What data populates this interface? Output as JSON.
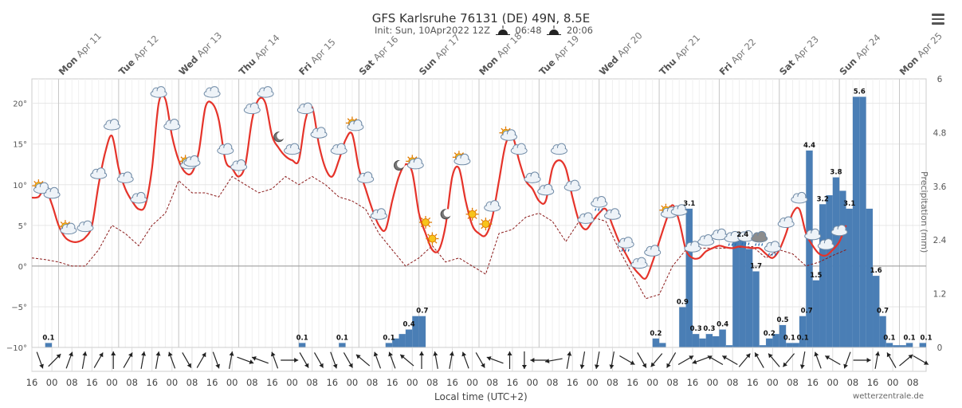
{
  "header": {
    "title": "GFS Karlsruhe 76131 (DE) 49N, 8.5E",
    "init": "Init: Sun, 10Apr2022 12Z",
    "sunrise": "06:48",
    "sunset": "20:06"
  },
  "credit": "wetterzentrale.de",
  "colors": {
    "temp": "#e5332a",
    "temp_cold": "#4aa3df",
    "dewpoint": "#8b1a1a",
    "precip": "#4a7eb5",
    "grid": "#e6e6e6"
  },
  "chart_data": {
    "type": "line+bar",
    "title": "GFS Karlsruhe 76131 (DE) 49N, 8.5E",
    "xlabel": "Local time (UTC+2)",
    "y_left": {
      "ticks": [
        "20°",
        "15°",
        "10°",
        "5°",
        "0°",
        "−5°",
        "−10°"
      ],
      "range": [
        -10,
        23
      ]
    },
    "y_right": {
      "label": "Precipitation (mm)",
      "ticks": [
        "6",
        "4.8",
        "3.6",
        "2.4",
        "1.2",
        "0"
      ],
      "range": [
        0,
        6
      ]
    },
    "days": [
      "Mon Apr 11",
      "Tue Apr 12",
      "Wed Apr 13",
      "Thu Apr 14",
      "Fri Apr 15",
      "Sat Apr 16",
      "Sun Apr 17",
      "Mon Apr 18",
      "Tue Apr 19",
      "Wed Apr 20",
      "Thu Apr 21",
      "Fri Apr 22",
      "Sat Apr 23",
      "Sun Apr 24",
      "Mon Apr 25"
    ],
    "hour_ticks": [
      "16",
      "00",
      "08",
      "16",
      "00",
      "08",
      "16",
      "00",
      "08",
      "16",
      "00",
      "08",
      "16",
      "00",
      "08",
      "16",
      "00",
      "08",
      "16",
      "00",
      "08",
      "16",
      "00",
      "08",
      "16",
      "00",
      "08",
      "16",
      "00",
      "08",
      "16",
      "00",
      "08",
      "16",
      "00",
      "08",
      "16",
      "00",
      "08",
      "16",
      "00",
      "08",
      "16",
      "00",
      "08"
    ],
    "grid": true,
    "temperature": [
      [
        0,
        8.4
      ],
      [
        1,
        8.5
      ],
      [
        2,
        9.5
      ],
      [
        3,
        7.6
      ],
      [
        4,
        5
      ],
      [
        5,
        3.5
      ],
      [
        6,
        3
      ],
      [
        7,
        3
      ],
      [
        8,
        3.5
      ],
      [
        9,
        5
      ],
      [
        10,
        10
      ],
      [
        11,
        14
      ],
      [
        12,
        16
      ],
      [
        13,
        12
      ],
      [
        14,
        9.5
      ],
      [
        15,
        8
      ],
      [
        16,
        7
      ],
      [
        17,
        7.5
      ],
      [
        18,
        12
      ],
      [
        19,
        20
      ],
      [
        20,
        20.5
      ],
      [
        21,
        16
      ],
      [
        22,
        13
      ],
      [
        23,
        11.5
      ],
      [
        24,
        11.5
      ],
      [
        25,
        14
      ],
      [
        26,
        19.5
      ],
      [
        27,
        20
      ],
      [
        28,
        18
      ],
      [
        29,
        13
      ],
      [
        30,
        12
      ],
      [
        31,
        11
      ],
      [
        32,
        12.5
      ],
      [
        33,
        18
      ],
      [
        34,
        20.5
      ],
      [
        35,
        20
      ],
      [
        36,
        16
      ],
      [
        37,
        14.5
      ],
      [
        38,
        13.5
      ],
      [
        39,
        13
      ],
      [
        40,
        13
      ],
      [
        41,
        18
      ],
      [
        42,
        19.5
      ],
      [
        43,
        15
      ],
      [
        44,
        12
      ],
      [
        45,
        11
      ],
      [
        46,
        13
      ],
      [
        47,
        15.5
      ],
      [
        48,
        16.2
      ],
      [
        49,
        12
      ],
      [
        50,
        9.5
      ],
      [
        51,
        7
      ],
      [
        52,
        5
      ],
      [
        53,
        4.5
      ],
      [
        54,
        8
      ],
      [
        55,
        11
      ],
      [
        56,
        12.5
      ],
      [
        57,
        11.5
      ],
      [
        58,
        6.5
      ],
      [
        59,
        4
      ],
      [
        60,
        2
      ],
      [
        61,
        2
      ],
      [
        62,
        5
      ],
      [
        63,
        11
      ],
      [
        64,
        12
      ],
      [
        65,
        8
      ],
      [
        66,
        5
      ],
      [
        67,
        4
      ],
      [
        68,
        3.8
      ],
      [
        69,
        6
      ],
      [
        70,
        10.5
      ],
      [
        71,
        15
      ],
      [
        72,
        16
      ],
      [
        73,
        13
      ],
      [
        74,
        10.5
      ],
      [
        75,
        9.5
      ],
      [
        76,
        8
      ],
      [
        77,
        8
      ],
      [
        78,
        12
      ],
      [
        79,
        13
      ],
      [
        80,
        12
      ],
      [
        81,
        8.5
      ],
      [
        82,
        5.5
      ],
      [
        83,
        4.5
      ],
      [
        84,
        5.5
      ],
      [
        85,
        6.5
      ],
      [
        86,
        7
      ],
      [
        87,
        5
      ],
      [
        88,
        3
      ],
      [
        89,
        1.5
      ],
      [
        90,
        0
      ],
      [
        91,
        -1
      ],
      [
        92,
        -1.5
      ],
      [
        93,
        0.5
      ],
      [
        94,
        3
      ],
      [
        95,
        5.5
      ],
      [
        96,
        7.5
      ],
      [
        97,
        5.5
      ],
      [
        98,
        2
      ],
      [
        99,
        1
      ],
      [
        100,
        1
      ],
      [
        101,
        1.8
      ],
      [
        102,
        2.2
      ],
      [
        103,
        2.5
      ],
      [
        104,
        2.3
      ],
      [
        105,
        2.2
      ],
      [
        106,
        2.4
      ],
      [
        107,
        2.3
      ],
      [
        108,
        2.2
      ],
      [
        109,
        2.2
      ],
      [
        110,
        1.5
      ],
      [
        111,
        1
      ],
      [
        112,
        2
      ],
      [
        113,
        4
      ],
      [
        114,
        6.5
      ],
      [
        115,
        7
      ],
      [
        116,
        4
      ],
      [
        117,
        2.5
      ],
      [
        118,
        1.5
      ],
      [
        119,
        1.3
      ],
      [
        120,
        2
      ],
      [
        121,
        3
      ],
      [
        122,
        5
      ]
    ],
    "dewpoint": [
      [
        0,
        1
      ],
      [
        2,
        0.8
      ],
      [
        4,
        0.5
      ],
      [
        6,
        0
      ],
      [
        8,
        0
      ],
      [
        10,
        2
      ],
      [
        12,
        5
      ],
      [
        14,
        4
      ],
      [
        16,
        2.5
      ],
      [
        18,
        5
      ],
      [
        20,
        6.5
      ],
      [
        22,
        10.5
      ],
      [
        24,
        9
      ],
      [
        26,
        9
      ],
      [
        28,
        8.5
      ],
      [
        30,
        11
      ],
      [
        32,
        10
      ],
      [
        34,
        9
      ],
      [
        36,
        9.5
      ],
      [
        38,
        11
      ],
      [
        40,
        10
      ],
      [
        42,
        11
      ],
      [
        44,
        10
      ],
      [
        46,
        8.5
      ],
      [
        48,
        8
      ],
      [
        50,
        7
      ],
      [
        52,
        4
      ],
      [
        54,
        2
      ],
      [
        56,
        0
      ],
      [
        58,
        1
      ],
      [
        60,
        2.5
      ],
      [
        62,
        0.5
      ],
      [
        64,
        1
      ],
      [
        66,
        0
      ],
      [
        68,
        -1
      ],
      [
        70,
        4
      ],
      [
        72,
        4.5
      ],
      [
        74,
        6
      ],
      [
        76,
        6.5
      ],
      [
        78,
        5.5
      ],
      [
        80,
        3
      ],
      [
        82,
        5.5
      ],
      [
        84,
        6
      ],
      [
        86,
        5.5
      ],
      [
        88,
        2
      ],
      [
        90,
        -1
      ],
      [
        92,
        -4
      ],
      [
        94,
        -3.5
      ],
      [
        96,
        0
      ],
      [
        98,
        2
      ],
      [
        100,
        2.2
      ],
      [
        104,
        2.2
      ],
      [
        108,
        2.4
      ],
      [
        110,
        1
      ],
      [
        112,
        2
      ],
      [
        114,
        1.5
      ],
      [
        116,
        0
      ],
      [
        118,
        0.5
      ],
      [
        120,
        1.3
      ],
      [
        122,
        2
      ]
    ],
    "precipitation": [
      [
        2,
        0.1
      ],
      [
        40,
        0.1
      ],
      [
        46,
        0.1
      ],
      [
        53,
        0.1
      ],
      [
        54,
        0.2
      ],
      [
        55,
        0.3
      ],
      [
        56,
        0.4
      ],
      [
        57,
        0.7
      ],
      [
        58,
        0.7
      ],
      [
        93,
        0.2
      ],
      [
        94,
        0.1
      ],
      [
        97,
        0.9
      ],
      [
        98,
        3.1
      ],
      [
        99,
        0.3
      ],
      [
        100,
        0.2
      ],
      [
        101,
        0.3
      ],
      [
        102,
        0.25
      ],
      [
        103,
        0.4
      ],
      [
        104,
        0.05
      ],
      [
        105,
        2.4
      ],
      [
        106,
        2.4
      ],
      [
        107,
        2.2
      ],
      [
        108,
        1.7
      ],
      [
        109,
        0.05
      ],
      [
        110,
        0.2
      ],
      [
        111,
        0.3
      ],
      [
        112,
        0.5
      ],
      [
        113,
        0.1
      ],
      [
        114,
        0.1
      ],
      [
        115,
        0.7
      ],
      [
        116,
        4.4
      ],
      [
        117,
        1.5
      ],
      [
        118,
        3.2
      ],
      [
        119,
        3.4
      ],
      [
        120,
        3.8
      ],
      [
        121,
        3.5
      ],
      [
        122,
        3.1
      ],
      [
        123,
        5.6
      ],
      [
        124,
        5.6
      ],
      [
        125,
        3.1
      ],
      [
        126,
        1.6
      ],
      [
        127,
        0.7
      ],
      [
        128,
        0.1
      ],
      [
        129,
        0.05
      ],
      [
        130,
        0.05
      ],
      [
        131,
        0.1
      ],
      [
        133,
        0.1
      ]
    ],
    "precip_labels": [
      [
        "0.1",
        2
      ],
      [
        "0.1",
        40
      ],
      [
        "0.1",
        46
      ],
      [
        "0.1",
        53
      ],
      [
        "0.4",
        56
      ],
      [
        "0.7",
        58
      ],
      [
        "0.2",
        93
      ],
      [
        "0.9",
        97
      ],
      [
        "3.1",
        98
      ],
      [
        "0.3",
        99
      ],
      [
        "0.3",
        101
      ],
      [
        "0.4",
        103
      ],
      [
        "2.4",
        106
      ],
      [
        "1.7",
        108
      ],
      [
        "0.2",
        110
      ],
      [
        "0.5",
        112
      ],
      [
        "0.1",
        113
      ],
      [
        "0.1",
        115
      ],
      [
        "0.7",
        115.6
      ],
      [
        "4.4",
        116
      ],
      [
        "1.5",
        117
      ],
      [
        "3.2",
        118
      ],
      [
        "3.8",
        120
      ],
      [
        "3.1",
        122
      ],
      [
        "5.6",
        123.5
      ],
      [
        "1.6",
        126
      ],
      [
        "0.7",
        127
      ],
      [
        "0.1",
        128
      ],
      [
        "0.1",
        131
      ],
      [
        "0.1",
        133.5
      ]
    ],
    "wind_dirs": [
      70,
      315,
      290,
      280,
      300,
      270,
      300,
      280,
      280,
      250,
      60,
      300,
      70,
      280,
      20,
      200,
      250,
      0,
      60,
      60,
      70,
      60,
      220,
      250,
      250,
      220,
      270,
      260,
      280,
      250,
      60,
      200,
      270,
      90,
      180,
      170,
      280,
      100,
      100,
      100,
      30,
      60,
      130,
      120,
      330,
      160,
      210,
      210,
      310,
      240,
      230,
      130,
      100,
      250,
      210,
      110,
      0,
      280,
      240,
      320,
      30
    ],
    "weather_icons": [
      [
        1,
        "sun-cloud"
      ],
      [
        3,
        "cloud"
      ],
      [
        5,
        "sun-cloud"
      ],
      [
        8,
        "cloud"
      ],
      [
        10,
        "cloud"
      ],
      [
        12,
        "cloud"
      ],
      [
        14,
        "cloud"
      ],
      [
        16,
        "cloud"
      ],
      [
        19,
        "cloud"
      ],
      [
        21,
        "cloud"
      ],
      [
        23,
        "sun-cloud"
      ],
      [
        24,
        "cloud"
      ],
      [
        27,
        "cloud"
      ],
      [
        29,
        "cloud"
      ],
      [
        31,
        "cloud"
      ],
      [
        33,
        "cloud"
      ],
      [
        35,
        "cloud"
      ],
      [
        37,
        "moon"
      ],
      [
        39,
        "cloud"
      ],
      [
        41,
        "cloud"
      ],
      [
        43,
        "cloud"
      ],
      [
        46,
        "cloud"
      ],
      [
        48,
        "sun-cloud"
      ],
      [
        50,
        "cloud"
      ],
      [
        52,
        "cloud"
      ],
      [
        55,
        "moon"
      ],
      [
        57,
        "sun-cloud"
      ],
      [
        59,
        "sun"
      ],
      [
        60,
        "sun"
      ],
      [
        62,
        "moon"
      ],
      [
        64,
        "sun-cloud"
      ],
      [
        66,
        "sun"
      ],
      [
        68,
        "sun"
      ],
      [
        69,
        "cloud"
      ],
      [
        71,
        "sun-cloud"
      ],
      [
        73,
        "cloud"
      ],
      [
        75,
        "cloud"
      ],
      [
        77,
        "cloud"
      ],
      [
        79,
        "cloud"
      ],
      [
        81,
        "cloud"
      ],
      [
        83,
        "cloud"
      ],
      [
        85,
        "rain"
      ],
      [
        87,
        "cloud"
      ],
      [
        89,
        "rain"
      ],
      [
        91,
        "cloud"
      ],
      [
        93,
        "cloud"
      ],
      [
        95,
        "sun-cloud"
      ],
      [
        97,
        "cloud"
      ],
      [
        99,
        "cloud"
      ],
      [
        101,
        "cloud"
      ],
      [
        103,
        "cloud"
      ],
      [
        105,
        "rain"
      ],
      [
        107,
        "rain"
      ],
      [
        109,
        "storm"
      ],
      [
        111,
        "rain"
      ],
      [
        113,
        "cloud"
      ],
      [
        115,
        "cloud"
      ],
      [
        117,
        "cloud"
      ],
      [
        119,
        "cloud"
      ],
      [
        121,
        "cloud"
      ]
    ]
  }
}
